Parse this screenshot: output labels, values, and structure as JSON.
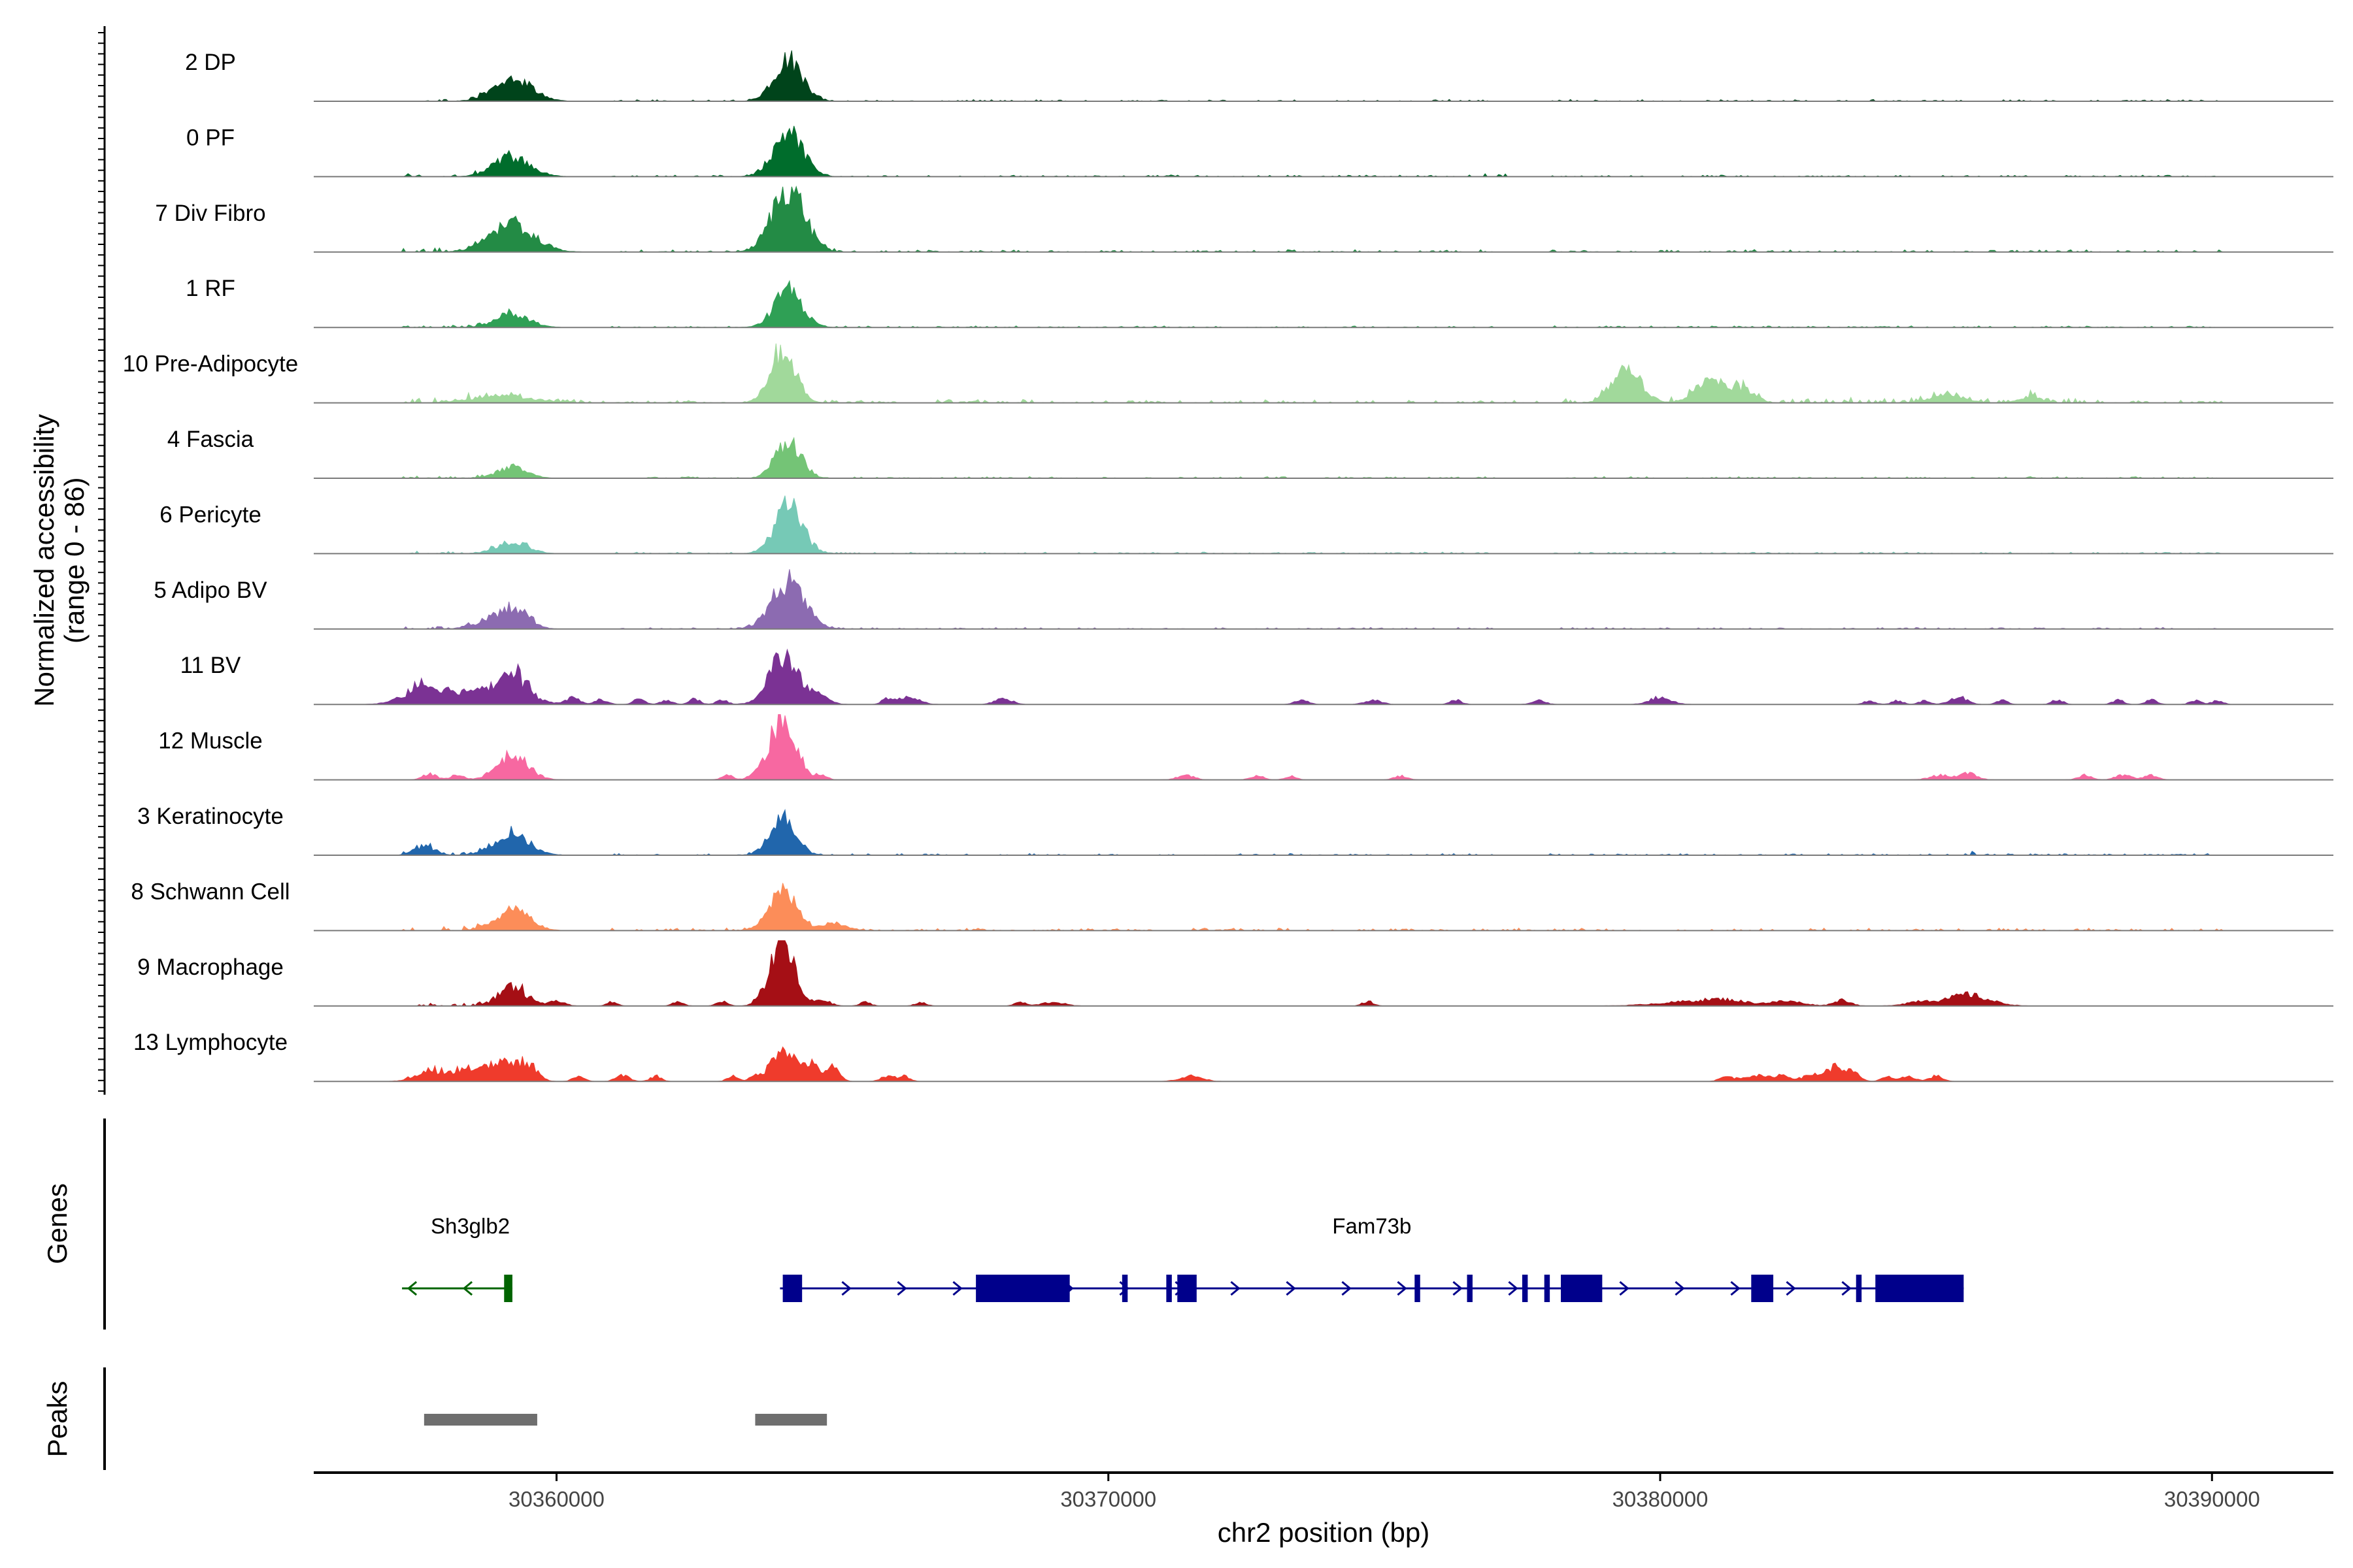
{
  "chart_data": {
    "type": "area",
    "layout": "coverage-tracks",
    "chromosome": "chr2",
    "xlim": [
      30355600,
      30392200
    ],
    "xlabel": "chr2 position (bp)",
    "xticks": [
      30360000,
      30370000,
      30380000,
      30390000
    ],
    "xtick_labels": [
      "30360000",
      "30370000",
      "30380000",
      "30390000"
    ],
    "coverage_ylabel": "Normalized accessibility\n(range 0 - 86)",
    "coverage_ylim": [
      0,
      86
    ],
    "tracks": [
      {
        "name": "2 DP",
        "color": "#00441b",
        "peaks": [
          [
            30359200,
            28,
            350
          ],
          [
            30364200,
            55,
            260
          ]
        ],
        "noise": [
          [
            30357200,
            30359600,
            4
          ],
          [
            30361000,
            30363500,
            2
          ],
          [
            30364500,
            30377000,
            2
          ],
          [
            30378000,
            30390200,
            2
          ],
          [
            30376000,
            30376300,
            4
          ]
        ]
      },
      {
        "name": "0 PF",
        "color": "#006d2c",
        "peaks": [
          [
            30359200,
            25,
            330
          ],
          [
            30364200,
            58,
            270
          ]
        ],
        "noise": [
          [
            30357200,
            30359600,
            4
          ],
          [
            30361000,
            30363500,
            2
          ],
          [
            30364500,
            30377000,
            2
          ],
          [
            30376800,
            30377200,
            5
          ],
          [
            30378000,
            30390200,
            2
          ]
        ]
      },
      {
        "name": "7 Div Fibro",
        "color": "#238b45",
        "peaks": [
          [
            30359200,
            35,
            400
          ],
          [
            30364200,
            86,
            290
          ]
        ],
        "noise": [
          [
            30357200,
            30359600,
            5
          ],
          [
            30361000,
            30363500,
            3
          ],
          [
            30364500,
            30377000,
            3
          ],
          [
            30378000,
            30390200,
            3
          ]
        ]
      },
      {
        "name": "1 RF",
        "color": "#2fa055",
        "peaks": [
          [
            30359200,
            18,
            300
          ],
          [
            30364200,
            48,
            250
          ]
        ],
        "noise": [
          [
            30357200,
            30359600,
            3
          ],
          [
            30361000,
            30363500,
            2
          ],
          [
            30364500,
            30377000,
            2
          ],
          [
            30378000,
            30390200,
            2
          ]
        ]
      },
      {
        "name": "10 Pre-Adipocyte",
        "color": "#a1d99b",
        "peaks": [
          [
            30359000,
            10,
            500
          ],
          [
            30364100,
            70,
            230
          ],
          [
            30379400,
            42,
            260
          ],
          [
            30380900,
            30,
            250
          ],
          [
            30381500,
            18,
            200
          ],
          [
            30385200,
            10,
            300
          ],
          [
            30386700,
            8,
            200
          ]
        ],
        "noise": [
          [
            30357200,
            30361000,
            6
          ],
          [
            30361000,
            30363500,
            3
          ],
          [
            30364500,
            30378000,
            4
          ],
          [
            30378000,
            30388000,
            7
          ],
          [
            30388000,
            30390200,
            3
          ]
        ]
      },
      {
        "name": "4 Fascia",
        "color": "#74c476",
        "peaks": [
          [
            30359200,
            14,
            280
          ],
          [
            30364200,
            50,
            230
          ]
        ],
        "noise": [
          [
            30357200,
            30359600,
            3
          ],
          [
            30361000,
            30363500,
            2
          ],
          [
            30364500,
            30377000,
            2
          ],
          [
            30378000,
            30390200,
            2
          ]
        ]
      },
      {
        "name": "6 Pericyte",
        "color": "#76c9b6",
        "peaks": [
          [
            30359200,
            16,
            280
          ],
          [
            30364200,
            62,
            250
          ]
        ],
        "noise": [
          [
            30357200,
            30359600,
            4
          ],
          [
            30361000,
            30363500,
            2
          ],
          [
            30364500,
            30377000,
            2
          ],
          [
            30378000,
            30390200,
            2
          ]
        ]
      },
      {
        "name": "5 Adipo BV",
        "color": "#8c6bb1",
        "peaks": [
          [
            30358800,
            10,
            300
          ],
          [
            30359250,
            26,
            250
          ],
          [
            30364200,
            62,
            300
          ]
        ],
        "noise": [
          [
            30357200,
            30359600,
            4
          ],
          [
            30361000,
            30363500,
            2
          ],
          [
            30364500,
            30377000,
            2
          ],
          [
            30378000,
            30390200,
            2
          ]
        ]
      },
      {
        "name": "11 BV",
        "color": "#7b3294",
        "peaks": [
          [
            30357600,
            20,
            350
          ],
          [
            30358700,
            18,
            600
          ],
          [
            30359200,
            26,
            250
          ],
          [
            30364100,
            62,
            260
          ],
          [
            30364700,
            12,
            200
          ]
        ],
        "noise": [
          [
            30357200,
            30359600,
            8
          ]
        ],
        "blips": [
          [
            30360300,
            8,
            120
          ],
          [
            30360800,
            6,
            120
          ],
          [
            30361500,
            7,
            100
          ],
          [
            30362000,
            6,
            100
          ],
          [
            30362500,
            7,
            100
          ],
          [
            30363000,
            6,
            100
          ],
          [
            30366000,
            8,
            100
          ],
          [
            30366400,
            10,
            180
          ],
          [
            30368100,
            8,
            150
          ],
          [
            30373500,
            6,
            120
          ],
          [
            30374800,
            6,
            150
          ],
          [
            30376300,
            6,
            100
          ],
          [
            30377800,
            6,
            120
          ],
          [
            30380000,
            9,
            200
          ],
          [
            30383800,
            5,
            100
          ],
          [
            30384300,
            5,
            100
          ],
          [
            30384800,
            5,
            100
          ],
          [
            30385400,
            10,
            150
          ],
          [
            30386200,
            5,
            100
          ],
          [
            30387200,
            6,
            100
          ],
          [
            30388300,
            6,
            100
          ],
          [
            30388900,
            6,
            100
          ],
          [
            30389700,
            5,
            100
          ],
          [
            30390100,
            5,
            100
          ]
        ]
      },
      {
        "name": "12 Muscle",
        "color": "#f768a1",
        "peaks": [
          [
            30359200,
            32,
            280
          ],
          [
            30364100,
            80,
            240
          ]
        ],
        "noise": [],
        "blips": [
          [
            30357700,
            8,
            120
          ],
          [
            30358200,
            6,
            120
          ],
          [
            30363100,
            6,
            100
          ],
          [
            30363600,
            6,
            100
          ],
          [
            30364800,
            6,
            100
          ],
          [
            30371400,
            6,
            150
          ],
          [
            30372700,
            5,
            120
          ],
          [
            30373300,
            5,
            100
          ],
          [
            30375300,
            5,
            120
          ],
          [
            30385100,
            6,
            200
          ],
          [
            30385600,
            8,
            150
          ],
          [
            30387700,
            6,
            120
          ],
          [
            30388400,
            6,
            150
          ],
          [
            30388900,
            6,
            120
          ]
        ]
      },
      {
        "name": "3 Keratinocyte",
        "color": "#2166ac",
        "peaks": [
          [
            30357600,
            12,
            180
          ],
          [
            30359200,
            26,
            320
          ],
          [
            30364100,
            52,
            230
          ]
        ],
        "noise": [
          [
            30357200,
            30359600,
            5
          ],
          [
            30361000,
            30363500,
            2
          ],
          [
            30364500,
            30377000,
            2
          ],
          [
            30378000,
            30390200,
            2
          ],
          [
            30385400,
            30385800,
            5
          ]
        ]
      },
      {
        "name": "8 Schwann Cell",
        "color": "#fc8d59",
        "peaks": [
          [
            30359200,
            28,
            300
          ],
          [
            30364100,
            50,
            260
          ],
          [
            30365000,
            10,
            200
          ]
        ],
        "noise": [
          [
            30357200,
            30359600,
            6
          ],
          [
            30361000,
            30363500,
            3
          ],
          [
            30364500,
            30378000,
            3
          ],
          [
            30378000,
            30390200,
            3
          ]
        ]
      },
      {
        "name": "9 Macrophage",
        "color": "#a50f15",
        "peaks": [
          [
            30359200,
            24,
            250
          ],
          [
            30364100,
            86,
            200
          ]
        ],
        "noise": [
          [
            30357500,
            30359600,
            5
          ]
        ],
        "blips": [
          [
            30360000,
            6,
            150
          ],
          [
            30361000,
            5,
            100
          ],
          [
            30362200,
            5,
            100
          ],
          [
            30363000,
            6,
            100
          ],
          [
            30363700,
            8,
            120
          ],
          [
            30364800,
            8,
            150
          ],
          [
            30365600,
            5,
            100
          ],
          [
            30366600,
            5,
            100
          ],
          [
            30368400,
            5,
            100
          ],
          [
            30369000,
            5,
            200
          ],
          [
            30374700,
            6,
            100
          ],
          [
            30380500,
            5,
            600
          ],
          [
            30381200,
            6,
            400
          ],
          [
            30382300,
            6,
            300
          ],
          [
            30383300,
            8,
            150
          ],
          [
            30384800,
            7,
            300
          ],
          [
            30385500,
            12,
            250
          ],
          [
            30385900,
            6,
            300
          ]
        ]
      },
      {
        "name": "13 Lymphocyte",
        "color": "#ef3b2c",
        "peaks": [
          [
            30357700,
            14,
            250
          ],
          [
            30358300,
            12,
            200
          ],
          [
            30359000,
            25,
            300
          ],
          [
            30359500,
            18,
            150
          ],
          [
            30364100,
            46,
            200
          ],
          [
            30364600,
            22,
            150
          ],
          [
            30365000,
            18,
            120
          ]
        ],
        "noise": [
          [
            30357200,
            30359600,
            6
          ]
        ],
        "blips": [
          [
            30360400,
            7,
            100
          ],
          [
            30361200,
            8,
            120
          ],
          [
            30361800,
            7,
            100
          ],
          [
            30363200,
            7,
            100
          ],
          [
            30363600,
            6,
            100
          ],
          [
            30366000,
            7,
            120
          ],
          [
            30366300,
            7,
            100
          ],
          [
            30371500,
            7,
            200
          ],
          [
            30381200,
            6,
            120
          ],
          [
            30381700,
            8,
            200
          ],
          [
            30382200,
            8,
            150
          ],
          [
            30382800,
            9,
            200
          ],
          [
            30383200,
            18,
            150
          ],
          [
            30383500,
            10,
            120
          ],
          [
            30384100,
            6,
            100
          ],
          [
            30384500,
            7,
            120
          ],
          [
            30385000,
            7,
            120
          ]
        ]
      }
    ],
    "genes_ylabel": "Genes",
    "genes": [
      {
        "name": "Sh3glb2",
        "color": "#006400",
        "strand": "-",
        "start": 30357200,
        "end": 30359200,
        "exons": [
          [
            30359050,
            30359200
          ]
        ]
      },
      {
        "name": "Fam73b",
        "color": "#00008b",
        "strand": "+",
        "start": 30364050,
        "end": 30385500,
        "exons": [
          [
            30364100,
            30364450
          ],
          [
            30367600,
            30369300
          ],
          [
            30370250,
            30370350
          ],
          [
            30371050,
            30371150
          ],
          [
            30371250,
            30371600
          ],
          [
            30375550,
            30375650
          ],
          [
            30376500,
            30376600
          ],
          [
            30377500,
            30377600
          ],
          [
            30377900,
            30378000
          ],
          [
            30378200,
            30378950
          ],
          [
            30381650,
            30382050
          ],
          [
            30383550,
            30383650
          ],
          [
            30383900,
            30385500
          ]
        ]
      }
    ],
    "peaks_ylabel": "Peaks",
    "called_peaks": [
      [
        30357600,
        30359650
      ],
      [
        30363600,
        30364900
      ]
    ]
  }
}
